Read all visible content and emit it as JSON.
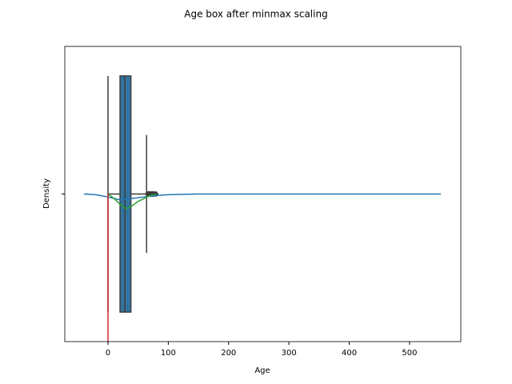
{
  "chart_data": {
    "type": "box",
    "title": "Age box after minmax scaling",
    "xlabel": "Age",
    "ylabel": "Density",
    "xlim": [
      -71.6,
      585
    ],
    "xticks": [
      0,
      100,
      200,
      300,
      400,
      500
    ],
    "ylim": [
      -1,
      1
    ],
    "yticks_unlabeled": [
      0
    ],
    "box": {
      "whisker_low": 0,
      "q1": 20,
      "median": 28,
      "q3": 38,
      "whisker_high": 64,
      "outliers": [
        65,
        67,
        69,
        71,
        73,
        75,
        77,
        80
      ],
      "color": "#3274a1"
    },
    "lines": [
      {
        "color": "#1f77b4",
        "x": [
          -40,
          -20,
          0,
          20,
          40,
          60,
          80,
          100,
          150,
          300,
          552
        ],
        "y": [
          0,
          -0.005,
          -0.02,
          -0.04,
          -0.03,
          -0.02,
          -0.01,
          -0.005,
          0,
          0,
          0
        ]
      },
      {
        "color": "#2ca02c",
        "x": [
          0,
          10,
          20,
          30,
          40,
          50,
          60,
          70,
          80
        ],
        "y": [
          0,
          -0.03,
          -0.07,
          -0.1,
          -0.08,
          -0.05,
          -0.03,
          -0.01,
          0
        ]
      },
      {
        "color": "#d62728",
        "x": [
          0,
          0
        ],
        "y": [
          0,
          -1
        ]
      }
    ]
  }
}
